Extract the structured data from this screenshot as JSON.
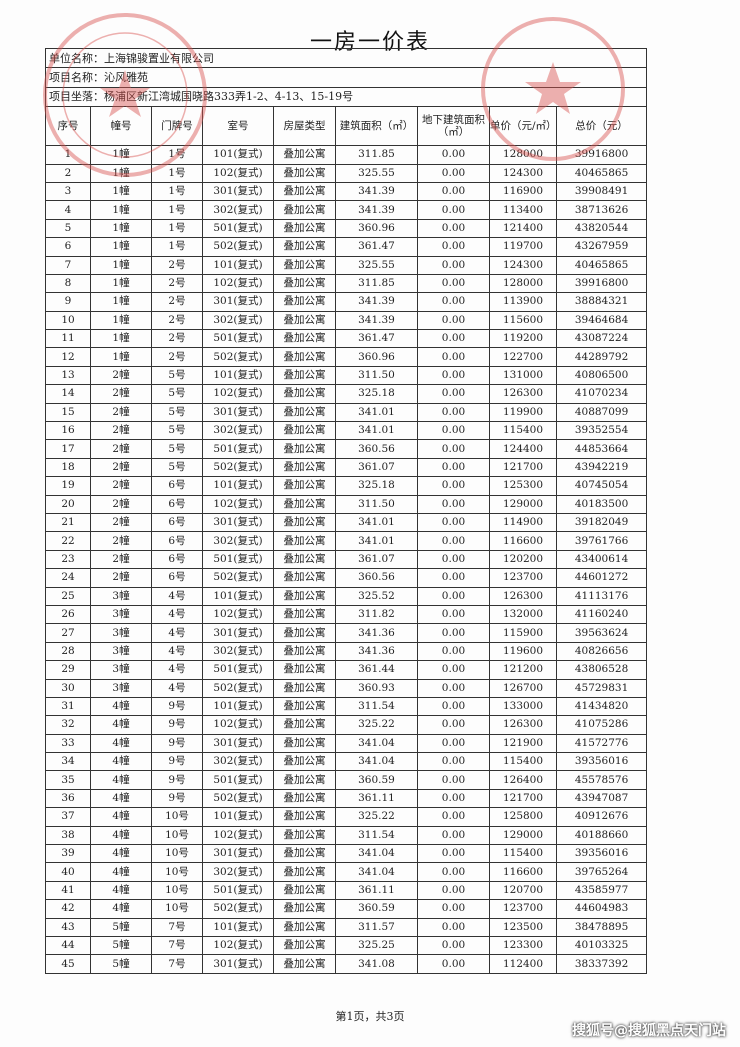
{
  "title": "一房一价表",
  "info": {
    "company": "单位名称：上海锦骏置业有限公司",
    "project": "项目名称：沁风雅苑",
    "address": "项目坐落：杨浦区新江湾城国晓路333弄1-2、4-13、15-19号"
  },
  "headers": [
    "序号",
    "幢号",
    "门牌号",
    "室号",
    "房屋类型",
    "建筑面积（㎡）",
    "地下建筑面积（㎡）",
    "单价（元/㎡）",
    "总价（元）"
  ],
  "rows": [
    [
      "1",
      "1幢",
      "1号",
      "101(复式)",
      "叠加公寓",
      "311.85",
      "0.00",
      "128000",
      "39916800"
    ],
    [
      "2",
      "1幢",
      "1号",
      "102(复式)",
      "叠加公寓",
      "325.55",
      "0.00",
      "124300",
      "40465865"
    ],
    [
      "3",
      "1幢",
      "1号",
      "301(复式)",
      "叠加公寓",
      "341.39",
      "0.00",
      "116900",
      "39908491"
    ],
    [
      "4",
      "1幢",
      "1号",
      "302(复式)",
      "叠加公寓",
      "341.39",
      "0.00",
      "113400",
      "38713626"
    ],
    [
      "5",
      "1幢",
      "1号",
      "501(复式)",
      "叠加公寓",
      "360.96",
      "0.00",
      "121400",
      "43820544"
    ],
    [
      "6",
      "1幢",
      "1号",
      "502(复式)",
      "叠加公寓",
      "361.47",
      "0.00",
      "119700",
      "43267959"
    ],
    [
      "7",
      "1幢",
      "2号",
      "101(复式)",
      "叠加公寓",
      "325.55",
      "0.00",
      "124300",
      "40465865"
    ],
    [
      "8",
      "1幢",
      "2号",
      "102(复式)",
      "叠加公寓",
      "311.85",
      "0.00",
      "128000",
      "39916800"
    ],
    [
      "9",
      "1幢",
      "2号",
      "301(复式)",
      "叠加公寓",
      "341.39",
      "0.00",
      "113900",
      "38884321"
    ],
    [
      "10",
      "1幢",
      "2号",
      "302(复式)",
      "叠加公寓",
      "341.39",
      "0.00",
      "115600",
      "39464684"
    ],
    [
      "11",
      "1幢",
      "2号",
      "501(复式)",
      "叠加公寓",
      "361.47",
      "0.00",
      "119200",
      "43087224"
    ],
    [
      "12",
      "1幢",
      "2号",
      "502(复式)",
      "叠加公寓",
      "360.96",
      "0.00",
      "122700",
      "44289792"
    ],
    [
      "13",
      "2幢",
      "5号",
      "101(复式)",
      "叠加公寓",
      "311.50",
      "0.00",
      "131000",
      "40806500"
    ],
    [
      "14",
      "2幢",
      "5号",
      "102(复式)",
      "叠加公寓",
      "325.18",
      "0.00",
      "126300",
      "41070234"
    ],
    [
      "15",
      "2幢",
      "5号",
      "301(复式)",
      "叠加公寓",
      "341.01",
      "0.00",
      "119900",
      "40887099"
    ],
    [
      "16",
      "2幢",
      "5号",
      "302(复式)",
      "叠加公寓",
      "341.01",
      "0.00",
      "115400",
      "39352554"
    ],
    [
      "17",
      "2幢",
      "5号",
      "501(复式)",
      "叠加公寓",
      "360.56",
      "0.00",
      "124400",
      "44853664"
    ],
    [
      "18",
      "2幢",
      "5号",
      "502(复式)",
      "叠加公寓",
      "361.07",
      "0.00",
      "121700",
      "43942219"
    ],
    [
      "19",
      "2幢",
      "6号",
      "101(复式)",
      "叠加公寓",
      "325.18",
      "0.00",
      "125300",
      "40745054"
    ],
    [
      "20",
      "2幢",
      "6号",
      "102(复式)",
      "叠加公寓",
      "311.50",
      "0.00",
      "129000",
      "40183500"
    ],
    [
      "21",
      "2幢",
      "6号",
      "301(复式)",
      "叠加公寓",
      "341.01",
      "0.00",
      "114900",
      "39182049"
    ],
    [
      "22",
      "2幢",
      "6号",
      "302(复式)",
      "叠加公寓",
      "341.01",
      "0.00",
      "116600",
      "39761766"
    ],
    [
      "23",
      "2幢",
      "6号",
      "501(复式)",
      "叠加公寓",
      "361.07",
      "0.00",
      "120200",
      "43400614"
    ],
    [
      "24",
      "2幢",
      "6号",
      "502(复式)",
      "叠加公寓",
      "360.56",
      "0.00",
      "123700",
      "44601272"
    ],
    [
      "25",
      "3幢",
      "4号",
      "101(复式)",
      "叠加公寓",
      "325.52",
      "0.00",
      "126300",
      "41113176"
    ],
    [
      "26",
      "3幢",
      "4号",
      "102(复式)",
      "叠加公寓",
      "311.82",
      "0.00",
      "132000",
      "41160240"
    ],
    [
      "27",
      "3幢",
      "4号",
      "301(复式)",
      "叠加公寓",
      "341.36",
      "0.00",
      "115900",
      "39563624"
    ],
    [
      "28",
      "3幢",
      "4号",
      "302(复式)",
      "叠加公寓",
      "341.36",
      "0.00",
      "119600",
      "40826656"
    ],
    [
      "29",
      "3幢",
      "4号",
      "501(复式)",
      "叠加公寓",
      "361.44",
      "0.00",
      "121200",
      "43806528"
    ],
    [
      "30",
      "3幢",
      "4号",
      "502(复式)",
      "叠加公寓",
      "360.93",
      "0.00",
      "126700",
      "45729831"
    ],
    [
      "31",
      "4幢",
      "9号",
      "101(复式)",
      "叠加公寓",
      "311.54",
      "0.00",
      "133000",
      "41434820"
    ],
    [
      "32",
      "4幢",
      "9号",
      "102(复式)",
      "叠加公寓",
      "325.22",
      "0.00",
      "126300",
      "41075286"
    ],
    [
      "33",
      "4幢",
      "9号",
      "301(复式)",
      "叠加公寓",
      "341.04",
      "0.00",
      "121900",
      "41572776"
    ],
    [
      "34",
      "4幢",
      "9号",
      "302(复式)",
      "叠加公寓",
      "341.04",
      "0.00",
      "115400",
      "39356016"
    ],
    [
      "35",
      "4幢",
      "9号",
      "501(复式)",
      "叠加公寓",
      "360.59",
      "0.00",
      "126400",
      "45578576"
    ],
    [
      "36",
      "4幢",
      "9号",
      "502(复式)",
      "叠加公寓",
      "361.11",
      "0.00",
      "121700",
      "43947087"
    ],
    [
      "37",
      "4幢",
      "10号",
      "101(复式)",
      "叠加公寓",
      "325.22",
      "0.00",
      "125800",
      "40912676"
    ],
    [
      "38",
      "4幢",
      "10号",
      "102(复式)",
      "叠加公寓",
      "311.54",
      "0.00",
      "129000",
      "40188660"
    ],
    [
      "39",
      "4幢",
      "10号",
      "301(复式)",
      "叠加公寓",
      "341.04",
      "0.00",
      "115400",
      "39356016"
    ],
    [
      "40",
      "4幢",
      "10号",
      "302(复式)",
      "叠加公寓",
      "341.04",
      "0.00",
      "116600",
      "39765264"
    ],
    [
      "41",
      "4幢",
      "10号",
      "501(复式)",
      "叠加公寓",
      "361.11",
      "0.00",
      "120700",
      "43585977"
    ],
    [
      "42",
      "4幢",
      "10号",
      "502(复式)",
      "叠加公寓",
      "360.59",
      "0.00",
      "123700",
      "44604983"
    ],
    [
      "43",
      "5幢",
      "7号",
      "101(复式)",
      "叠加公寓",
      "311.57",
      "0.00",
      "123500",
      "38478895"
    ],
    [
      "44",
      "5幢",
      "7号",
      "102(复式)",
      "叠加公寓",
      "325.25",
      "0.00",
      "123300",
      "40103325"
    ],
    [
      "45",
      "5幢",
      "7号",
      "301(复式)",
      "叠加公寓",
      "341.08",
      "0.00",
      "112400",
      "38337392"
    ]
  ],
  "stamps": {
    "left_text": "JIN JUN REAL",
    "color": "#d9534f"
  },
  "footer": "第1页，共3页",
  "watermark": "搜狐号@搜狐黑点天门站"
}
